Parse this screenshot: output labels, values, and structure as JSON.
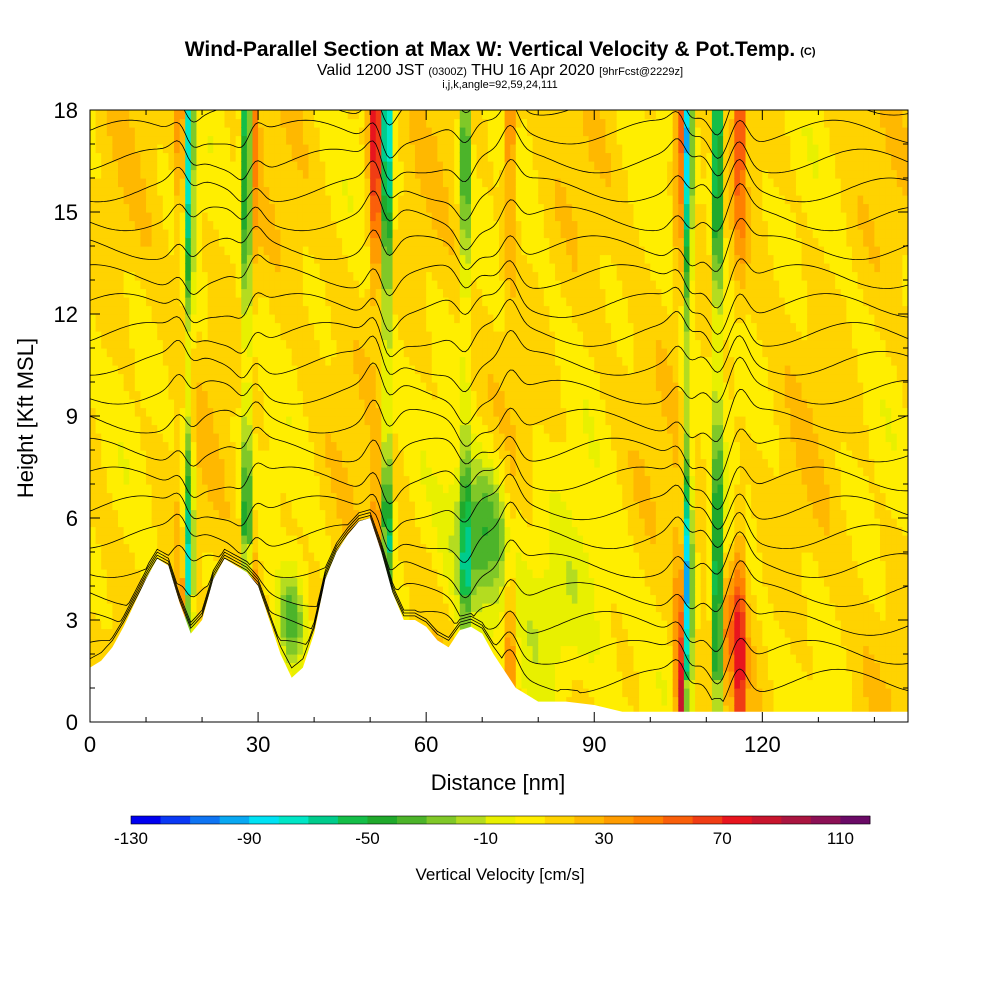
{
  "title": {
    "main": "Wind-Parallel Section at Max W: Vertical Velocity & Pot.Temp.",
    "copyright": "(C)",
    "valid_prefix": "Valid 1200 JST",
    "valid_utc": "(0300Z)",
    "valid_date": "THU 16 Apr 2020",
    "forecast": "[9hrFcst@2229z]",
    "indices": "i,j,k,angle=92,59,24,111"
  },
  "chart_data": {
    "type": "heatmap",
    "xlabel": "Distance [nm]",
    "ylabel": "Height [Kft MSL]",
    "xlim": [
      0,
      146
    ],
    "ylim": [
      0,
      18
    ],
    "x_ticks": [
      0,
      30,
      60,
      90,
      120
    ],
    "y_ticks": [
      0,
      3,
      6,
      9,
      12,
      15,
      18
    ],
    "terrain": [
      [
        0,
        1.6
      ],
      [
        2,
        1.8
      ],
      [
        4,
        2.2
      ],
      [
        6,
        2.8
      ],
      [
        8,
        3.5
      ],
      [
        10,
        4.2
      ],
      [
        12,
        4.8
      ],
      [
        14,
        4.6
      ],
      [
        16,
        3.5
      ],
      [
        18,
        2.6
      ],
      [
        20,
        3.0
      ],
      [
        22,
        4.2
      ],
      [
        24,
        4.8
      ],
      [
        26,
        4.6
      ],
      [
        28,
        4.4
      ],
      [
        30,
        4.0
      ],
      [
        32,
        3.0
      ],
      [
        34,
        2.0
      ],
      [
        36,
        1.3
      ],
      [
        38,
        1.6
      ],
      [
        40,
        2.6
      ],
      [
        42,
        4.2
      ],
      [
        44,
        5.0
      ],
      [
        46,
        5.5
      ],
      [
        48,
        5.9
      ],
      [
        50,
        6.0
      ],
      [
        52,
        5.0
      ],
      [
        54,
        3.8
      ],
      [
        56,
        3.0
      ],
      [
        58,
        3.0
      ],
      [
        60,
        2.8
      ],
      [
        62,
        2.4
      ],
      [
        64,
        2.2
      ],
      [
        66,
        2.7
      ],
      [
        68,
        2.8
      ],
      [
        70,
        2.6
      ],
      [
        72,
        2.0
      ],
      [
        74,
        1.5
      ],
      [
        76,
        1.0
      ],
      [
        78,
        0.8
      ],
      [
        80,
        0.6
      ],
      [
        85,
        0.6
      ],
      [
        90,
        0.5
      ],
      [
        95,
        0.3
      ],
      [
        100,
        0.3
      ],
      [
        110,
        0.3
      ],
      [
        120,
        0.3
      ],
      [
        130,
        0.3
      ],
      [
        146,
        0.3
      ]
    ],
    "updraft_columns": [
      {
        "x": 16.5,
        "peak_cm_s": 70
      },
      {
        "x": 29,
        "peak_cm_s": 60
      },
      {
        "x": 51,
        "peak_cm_s": 110
      },
      {
        "x": 75,
        "peak_cm_s": 60
      },
      {
        "x": 105.5,
        "peak_cm_s": 110
      },
      {
        "x": 116,
        "peak_cm_s": 70
      }
    ],
    "downdraft_columns": [
      {
        "x": 17.5,
        "min_cm_s": -100
      },
      {
        "x": 28,
        "min_cm_s": -90
      },
      {
        "x": 53,
        "min_cm_s": -100
      },
      {
        "x": 67,
        "min_cm_s": -50
      },
      {
        "x": 106.5,
        "min_cm_s": -110
      },
      {
        "x": 112,
        "min_cm_s": -90
      }
    ],
    "colorbar": {
      "title": "Vertical Velocity [cm/s]",
      "min": -130,
      "max": 120,
      "step": 10,
      "tick_values": [
        -130,
        -90,
        -50,
        -10,
        30,
        70,
        110
      ],
      "tick_labels": [
        "-130",
        "-90",
        "-50",
        "-10",
        "30",
        "70",
        "110"
      ],
      "colors": [
        "#0000f0",
        "#0a38f5",
        "#0f74f3",
        "#08a8f2",
        "#00e2f4",
        "#00e6c6",
        "#00cc8c",
        "#14be48",
        "#20a92c",
        "#4cb42a",
        "#80c828",
        "#b4dc20",
        "#e8f000",
        "#ffee00",
        "#ffd300",
        "#ffb800",
        "#ff9c00",
        "#ff8000",
        "#fa5f0a",
        "#f03c14",
        "#e8141e",
        "#c8142d",
        "#aa1440",
        "#8c1055",
        "#6a0a66"
      ]
    }
  }
}
